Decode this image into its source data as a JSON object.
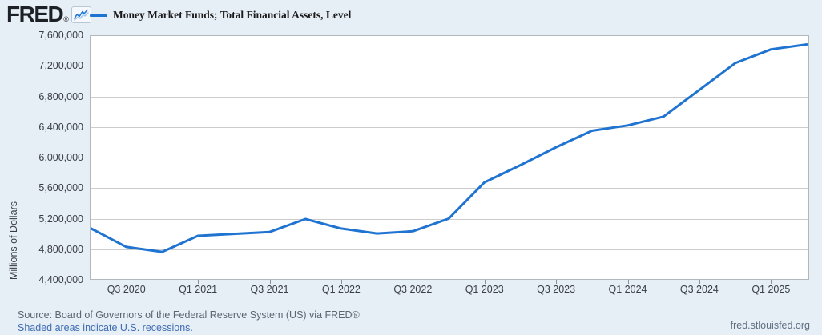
{
  "header": {
    "logo_text": "FRED",
    "registered_mark": "®"
  },
  "legend": {
    "label": "Money Market Funds; Total Financial Assets, Level"
  },
  "footer": {
    "source_line": "Source: Board of Governors of the Federal Reserve System (US) via FRED®",
    "recessions_note": "Shaded areas indicate U.S. recessions.",
    "site_url": "fred.stlouisfed.org"
  },
  "colors": {
    "background": "#e6eef6",
    "plot_background": "#ffffff",
    "line": "#1f73d1",
    "gridline": "#cccccc",
    "plot_border": "#b0b7bd",
    "axis_text": "#3a3f45",
    "source_text": "#5c6670",
    "link_text": "#3f6db5"
  },
  "chart_data": {
    "type": "line",
    "title": "Money Market Funds; Total Financial Assets, Level",
    "xlabel": "",
    "ylabel": "Millions of Dollars",
    "ylim": [
      4400000,
      7600000
    ],
    "ytick_step": 400000,
    "grid": true,
    "legend_position": "top-left",
    "ytick_labels": [
      "7,600,000",
      "7,200,000",
      "6,800,000",
      "6,400,000",
      "6,000,000",
      "5,600,000",
      "5,200,000",
      "4,800,000",
      "4,400,000"
    ],
    "xtick_labels": [
      "Q3 2020",
      "Q1 2021",
      "Q3 2021",
      "Q1 2022",
      "Q3 2022",
      "Q1 2023",
      "Q3 2023",
      "Q1 2024",
      "Q3 2024",
      "Q1 2025"
    ],
    "x": [
      "2020 Q2",
      "2020 Q3",
      "2020 Q4",
      "2021 Q1",
      "2021 Q2",
      "2021 Q3",
      "2021 Q4",
      "2022 Q1",
      "2022 Q2",
      "2022 Q3",
      "2022 Q4",
      "2023 Q1",
      "2023 Q2",
      "2023 Q3",
      "2023 Q4",
      "2024 Q1",
      "2024 Q2",
      "2024 Q3",
      "2024 Q4",
      "2025 Q1",
      "2025 Q2"
    ],
    "values": [
      5075000,
      4830000,
      4765000,
      4975000,
      5000000,
      5025000,
      5195000,
      5070000,
      5005000,
      5035000,
      5200000,
      5675000,
      5900000,
      6135000,
      6350000,
      6420000,
      6535000,
      6885000,
      7235000,
      7415000,
      7480000
    ]
  }
}
